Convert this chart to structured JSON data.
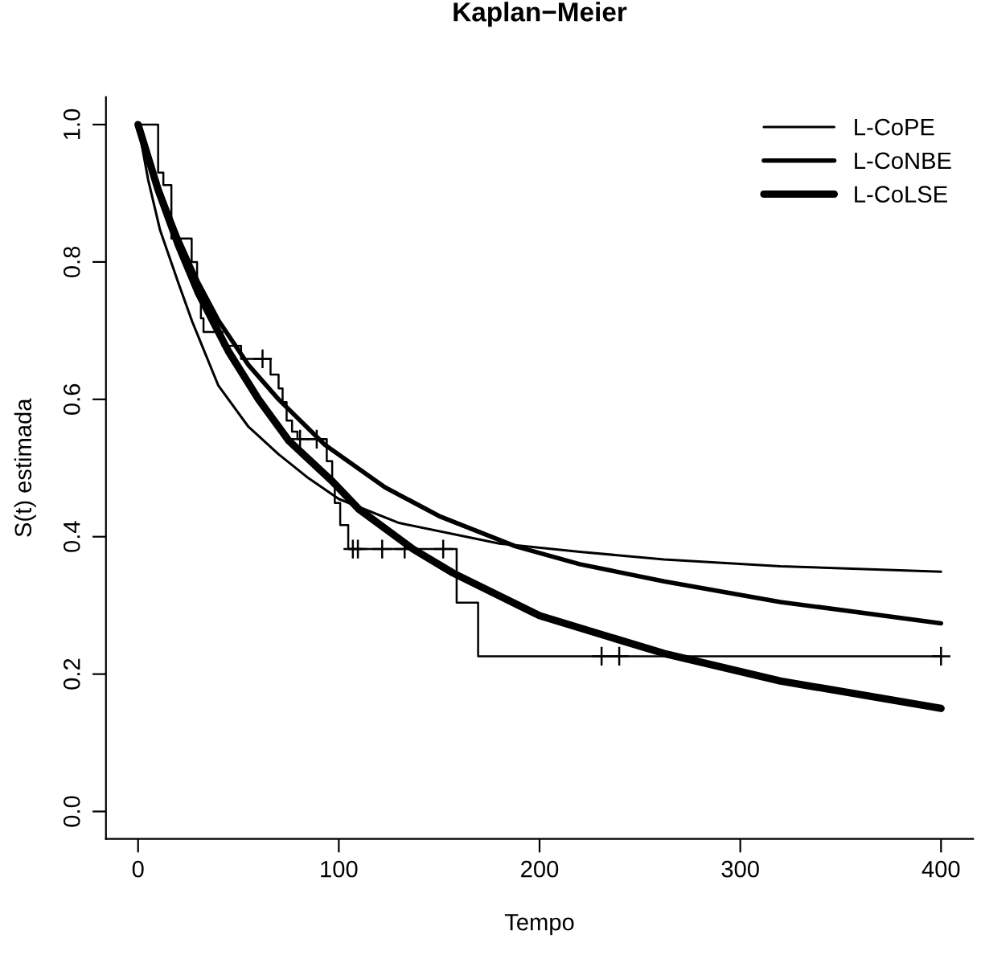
{
  "chart_data": {
    "type": "line",
    "title": "Kaplan−Meier",
    "xlabel": "Tempo",
    "ylabel": "S(t) estimada",
    "xlim": [
      -16,
      416
    ],
    "ylim": [
      -0.04,
      1.04
    ],
    "xticks": [
      0,
      100,
      200,
      300,
      400
    ],
    "yticks": [
      {
        "value": 0,
        "label": "0.0"
      },
      {
        "value": 0.2,
        "label": "0.2"
      },
      {
        "value": 0.4,
        "label": "0.4"
      },
      {
        "value": 0.6,
        "label": "0.6"
      },
      {
        "value": 0.8,
        "label": "0.8"
      },
      {
        "value": 1,
        "label": "1.0"
      }
    ],
    "grid": false,
    "legend": "top right",
    "series": [
      {
        "type": "step",
        "color": "#000000",
        "x": [
          0,
          10,
          12.6,
          16.6,
          26.7,
          29.4,
          31.3,
          32.6,
          42,
          51.3,
          66,
          70,
          72,
          74,
          76.7,
          79.4,
          94,
          96.7,
          98,
          100.7,
          104.7,
          158.7,
          169.4,
          400
        ],
        "values": [
          1,
          0.93,
          0.912,
          0.834,
          0.8,
          0.756,
          0.718,
          0.698,
          0.678,
          0.659,
          0.636,
          0.616,
          0.596,
          0.569,
          0.553,
          0.542,
          0.51,
          0.475,
          0.449,
          0.417,
          0.382,
          0.304,
          0.226,
          0.226
        ]
      },
      {
        "type": "scatter",
        "color": "#000000",
        "marker": "cross",
        "x": [
          62,
          80.7,
          89,
          107,
          109.5,
          121.6,
          132.8,
          152,
          230.9,
          239.7,
          400
        ],
        "values": [
          0.659,
          0.542,
          0.542,
          0.382,
          0.382,
          0.382,
          0.382,
          0.382,
          0.226,
          0.226,
          0.226
        ]
      },
      {
        "name": "L-CoPE",
        "color": "#000000",
        "x": [
          0,
          5,
          11,
          20,
          27,
          40,
          55,
          70,
          85,
          100,
          130,
          180,
          220,
          262,
          320,
          400
        ],
        "values": [
          1,
          0.92,
          0.846,
          0.77,
          0.713,
          0.62,
          0.56,
          0.52,
          0.485,
          0.455,
          0.42,
          0.39,
          0.378,
          0.367,
          0.357,
          0.349
        ]
      },
      {
        "name": "L-CoNBE",
        "color": "#000000",
        "x": [
          0,
          10,
          20,
          30,
          40,
          55,
          70,
          93,
          123,
          150,
          188,
          220,
          262,
          320,
          400
        ],
        "values": [
          1,
          0.91,
          0.835,
          0.77,
          0.715,
          0.65,
          0.6,
          0.534,
          0.472,
          0.43,
          0.386,
          0.36,
          0.335,
          0.305,
          0.274
        ]
      },
      {
        "name": "L-CoLSE",
        "color": "#000000",
        "x": [
          0,
          10,
          20,
          30,
          45,
          60,
          75,
          97,
          110,
          137,
          157,
          200,
          262,
          320,
          400
        ],
        "values": [
          1,
          0.905,
          0.825,
          0.755,
          0.67,
          0.6,
          0.54,
          0.48,
          0.44,
          0.382,
          0.347,
          0.285,
          0.23,
          0.19,
          0.15
        ]
      }
    ]
  }
}
